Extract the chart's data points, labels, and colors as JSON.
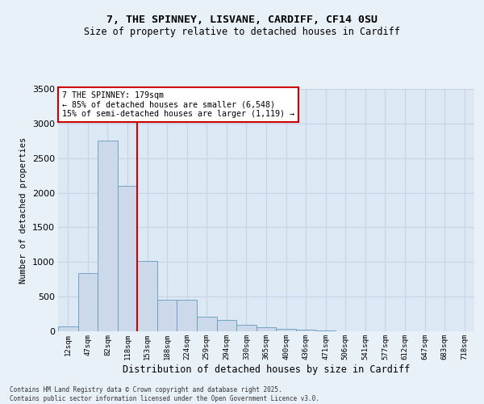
{
  "title1": "7, THE SPINNEY, LISVANE, CARDIFF, CF14 0SU",
  "title2": "Size of property relative to detached houses in Cardiff",
  "xlabel": "Distribution of detached houses by size in Cardiff",
  "ylabel": "Number of detached properties",
  "categories": [
    "12sqm",
    "47sqm",
    "82sqm",
    "118sqm",
    "153sqm",
    "188sqm",
    "224sqm",
    "259sqm",
    "294sqm",
    "330sqm",
    "365sqm",
    "400sqm",
    "436sqm",
    "471sqm",
    "506sqm",
    "541sqm",
    "577sqm",
    "612sqm",
    "647sqm",
    "683sqm",
    "718sqm"
  ],
  "values": [
    75,
    840,
    2750,
    2100,
    1020,
    450,
    450,
    210,
    165,
    90,
    55,
    30,
    20,
    12,
    5,
    3,
    2,
    1,
    1,
    0,
    0
  ],
  "bar_color": "#ccd9ea",
  "bar_edge_color": "#6699bb",
  "vline_color": "#cc0000",
  "vline_pos": 3.5,
  "annotation_title": "7 THE SPINNEY: 179sqm",
  "annotation_line1": "← 85% of detached houses are smaller (6,548)",
  "annotation_line2": "15% of semi-detached houses are larger (1,119) →",
  "annotation_box_color": "#cc0000",
  "annotation_bg": "#ffffff",
  "ylim": [
    0,
    3500
  ],
  "yticks": [
    0,
    500,
    1000,
    1500,
    2000,
    2500,
    3000,
    3500
  ],
  "grid_color": "#c8d4e4",
  "bg_color": "#dce8f4",
  "fig_bg_color": "#e8f0f8",
  "footer1": "Contains HM Land Registry data © Crown copyright and database right 2025.",
  "footer2": "Contains public sector information licensed under the Open Government Licence v3.0."
}
